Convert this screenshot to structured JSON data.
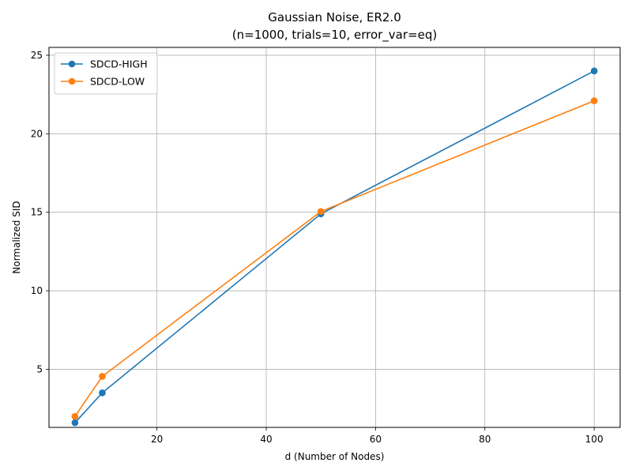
{
  "chart_data": {
    "type": "line",
    "title": "Gaussian Noise, ER2.0",
    "subtitle": "(n=1000, trials=10, error_var=eq)",
    "xlabel": "d (Number of Nodes)",
    "ylabel": "Normalized SID",
    "xlim": [
      0.25,
      104.75
    ],
    "ylim": [
      1.3,
      25.5
    ],
    "xticks": [
      20,
      40,
      60,
      80,
      100
    ],
    "yticks": [
      5,
      10,
      15,
      20,
      25
    ],
    "grid": true,
    "legend_position": "upper-left",
    "x": [
      5,
      10,
      50,
      100
    ],
    "series": [
      {
        "name": "SDCD-HIGH",
        "color": "#1f77b4",
        "values": [
          1.6,
          3.5,
          14.9,
          24.0
        ]
      },
      {
        "name": "SDCD-LOW",
        "color": "#ff7f0e",
        "values": [
          2.0,
          4.55,
          15.05,
          22.1
        ]
      }
    ]
  }
}
